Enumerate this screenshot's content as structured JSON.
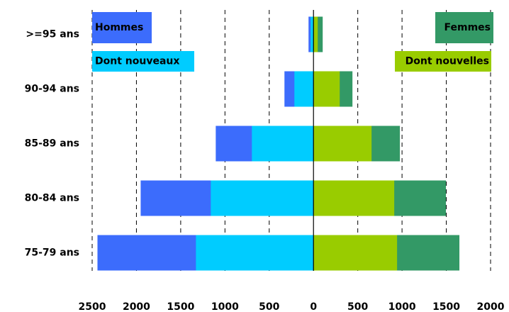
{
  "chart_data": {
    "type": "pyramid",
    "categories": [
      ">=95 ans",
      "90-94 ans",
      "85-89 ans",
      "80-84 ans",
      "75-79 ans"
    ],
    "series": [
      {
        "name": "Hommes",
        "color": "#3c6cfc",
        "values": [
          -56,
          -328,
          -1104,
          -1952,
          -2440
        ]
      },
      {
        "name": "Dont nouveaux",
        "color": "#00ccff",
        "values": [
          -32,
          -216,
          -696,
          -1160,
          -1328
        ]
      },
      {
        "name": "Femmes",
        "color": "#339966",
        "values": [
          104,
          440,
          976,
          1496,
          1648
        ]
      },
      {
        "name": "Dont nouvelles",
        "color": "#99cc00",
        "values": [
          48,
          296,
          656,
          912,
          944
        ]
      }
    ],
    "xlim": [
      -2500,
      2000
    ],
    "xticks": [
      {
        "value": -2500,
        "label": "2500"
      },
      {
        "value": -2000,
        "label": "2000"
      },
      {
        "value": -1500,
        "label": "1500"
      },
      {
        "value": -1000,
        "label": "1000"
      },
      {
        "value": -500,
        "label": "500"
      },
      0,
      500,
      1000,
      1500,
      2000
    ],
    "grid": true
  }
}
